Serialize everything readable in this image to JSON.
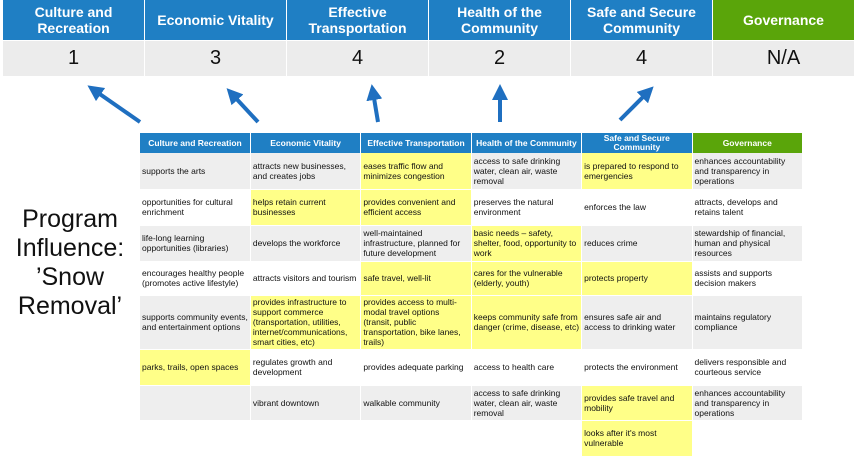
{
  "categories": [
    {
      "label": "Culture and Recreation",
      "value": "1"
    },
    {
      "label": "Economic Vitality",
      "value": "3"
    },
    {
      "label": "Effective Transportation",
      "value": "4"
    },
    {
      "label": "Health of the Community",
      "value": "2"
    },
    {
      "label": "Safe and Secure Community",
      "value": "4"
    },
    {
      "label": "Governance",
      "value": "N/A"
    }
  ],
  "side_label": "Program Influence: ’Snow Removal’",
  "colors": {
    "header_blue": "#1f7fc4",
    "governance_green": "#5aa50a",
    "highlight_yellow": "#ffff88",
    "arrow": "#1f6fc0"
  },
  "table": {
    "headers": [
      "Culture and Recreation",
      "Economic Vitality",
      "Effective Transportation",
      "Health of the Community",
      "Safe and Secure Community",
      "Governance"
    ],
    "rows": [
      [
        {
          "t": "supports the arts"
        },
        {
          "t": "attracts new businesses, and creates jobs"
        },
        {
          "t": "eases traffic flow and minimizes congestion",
          "h": true
        },
        {
          "t": "access to safe drinking water, clean air, waste removal"
        },
        {
          "t": "is prepared to respond to emergencies",
          "h": true
        },
        {
          "t": "enhances accountability and transparency in operations"
        }
      ],
      [
        {
          "t": "opportunities for cultural enrichment"
        },
        {
          "t": "helps retain current businesses",
          "h": true
        },
        {
          "t": "provides convenient and efficient access",
          "h": true
        },
        {
          "t": "preserves the natural environment"
        },
        {
          "t": "enforces the law"
        },
        {
          "t": "attracts, develops and retains talent"
        }
      ],
      [
        {
          "t": "life-long learning opportunities (libraries)"
        },
        {
          "t": "develops the workforce"
        },
        {
          "t": "well-maintained infrastructure, planned for future development"
        },
        {
          "t": "basic needs – safety, shelter, food, opportunity to work",
          "h": true
        },
        {
          "t": "reduces crime"
        },
        {
          "t": "stewardship of financial, human and physical resources"
        }
      ],
      [
        {
          "t": "encourages healthy people (promotes active lifestyle)"
        },
        {
          "t": "attracts visitors and tourism"
        },
        {
          "t": "safe travel, well-lit",
          "h": true
        },
        {
          "t": "cares for the vulnerable (elderly, youth)",
          "h": true
        },
        {
          "t": "protects property",
          "h": true
        },
        {
          "t": "assists and supports decision makers"
        }
      ],
      [
        {
          "t": "supports community events, and entertainment options"
        },
        {
          "t": "provides infrastructure to support commerce (transportation, utilities, internet/communications, smart cities, etc)",
          "h": true
        },
        {
          "t": "provides access to multi-modal travel options (transit, public transportation, bike lanes, trails)",
          "h": true
        },
        {
          "t": "keeps community safe from danger (crime, disease, etc)",
          "h": true
        },
        {
          "t": "ensures safe air and access to drinking water"
        },
        {
          "t": "maintains regulatory compliance"
        }
      ],
      [
        {
          "t": "parks, trails, open spaces",
          "h": true
        },
        {
          "t": "regulates growth and development"
        },
        {
          "t": "provides adequate parking"
        },
        {
          "t": "access to health care"
        },
        {
          "t": "protects the environment"
        },
        {
          "t": "delivers responsible and courteous service"
        }
      ],
      [
        {
          "t": ""
        },
        {
          "t": "vibrant downtown"
        },
        {
          "t": "walkable community"
        },
        {
          "t": "access to safe drinking water, clean air, waste removal"
        },
        {
          "t": "provides safe travel and mobility",
          "h": true
        },
        {
          "t": "enhances accountability and transparency in operations"
        }
      ],
      [
        {
          "t": ""
        },
        {
          "t": ""
        },
        {
          "t": ""
        },
        {
          "t": ""
        },
        {
          "t": "looks after it's most vulnerable",
          "h": true
        },
        {
          "t": ""
        }
      ]
    ]
  }
}
